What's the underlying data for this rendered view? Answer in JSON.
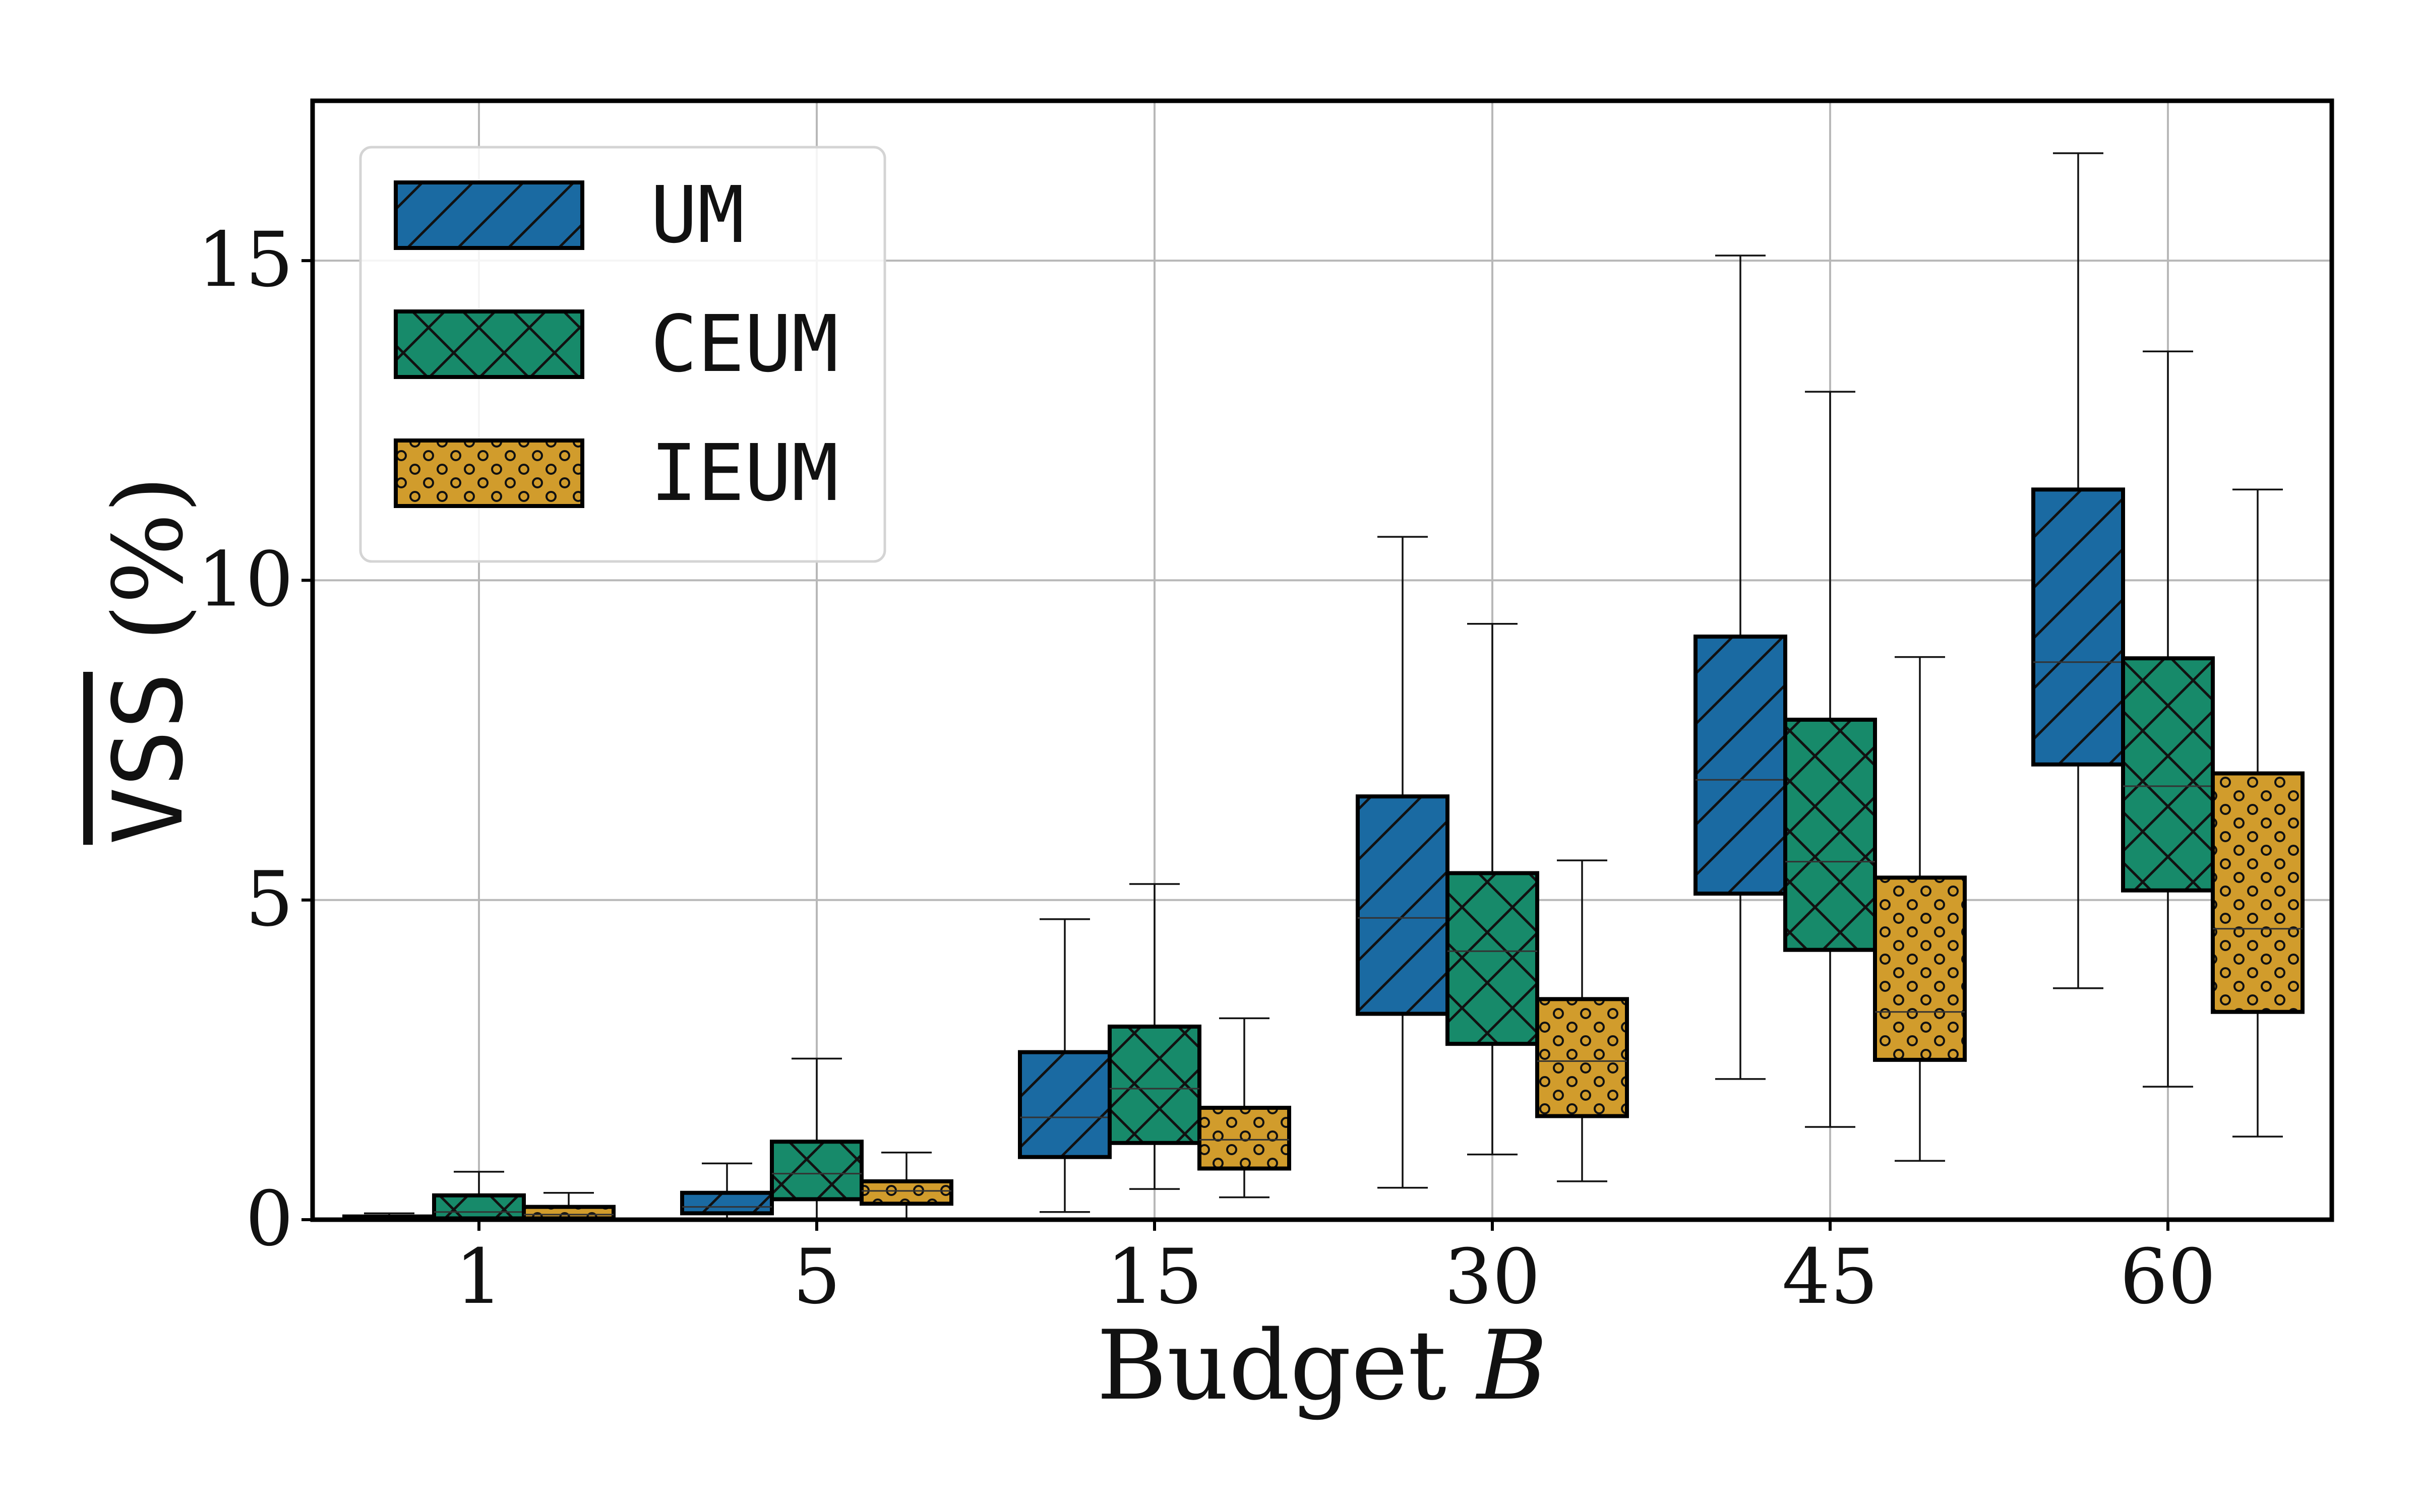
{
  "chart_data": {
    "type": "box",
    "xlabel_text": "Budget ",
    "xlabel_symbol": "B",
    "ylabel_text": "VSS",
    "ylabel_unit": "(%)",
    "categories": [
      "1",
      "5",
      "15",
      "30",
      "45",
      "60"
    ],
    "ylim": [
      0,
      17.5
    ],
    "yticks": [
      0,
      5,
      10,
      15
    ],
    "ytick_labels": [
      "0",
      "5",
      "10",
      "15"
    ],
    "grid": true,
    "legend_position": "top-left",
    "series": [
      {
        "name": "UM",
        "color": "#1a6aa2",
        "hatch": "diagonal",
        "boxes": [
          {
            "whisker_low": 0.0,
            "q1": 0.0,
            "median": 0.02,
            "q3": 0.05,
            "whisker_high": 0.1
          },
          {
            "whisker_low": 0.0,
            "q1": 0.1,
            "median": 0.2,
            "q3": 0.42,
            "whisker_high": 0.88
          },
          {
            "whisker_low": 0.12,
            "q1": 0.98,
            "median": 1.6,
            "q3": 2.62,
            "whisker_high": 4.7
          },
          {
            "whisker_low": 0.5,
            "q1": 3.22,
            "median": 4.72,
            "q3": 6.62,
            "whisker_high": 10.68
          },
          {
            "whisker_low": 2.2,
            "q1": 5.1,
            "median": 6.88,
            "q3": 9.12,
            "whisker_high": 15.08
          },
          {
            "whisker_low": 3.62,
            "q1": 7.12,
            "median": 8.72,
            "q3": 11.42,
            "whisker_high": 16.68
          }
        ]
      },
      {
        "name": "CEUM",
        "color": "#178a6a",
        "hatch": "cross",
        "boxes": [
          {
            "whisker_low": 0.0,
            "q1": 0.02,
            "median": 0.12,
            "q3": 0.38,
            "whisker_high": 0.75
          },
          {
            "whisker_low": 0.0,
            "q1": 0.32,
            "median": 0.72,
            "q3": 1.22,
            "whisker_high": 2.52
          },
          {
            "whisker_low": 0.48,
            "q1": 1.2,
            "median": 2.05,
            "q3": 3.02,
            "whisker_high": 5.25
          },
          {
            "whisker_low": 1.02,
            "q1": 2.75,
            "median": 4.2,
            "q3": 5.42,
            "whisker_high": 9.32
          },
          {
            "whisker_low": 1.45,
            "q1": 4.22,
            "median": 5.6,
            "q3": 7.82,
            "whisker_high": 12.95
          },
          {
            "whisker_low": 2.08,
            "q1": 5.15,
            "median": 6.78,
            "q3": 8.78,
            "whisker_high": 13.58
          }
        ]
      },
      {
        "name": "IEUM",
        "color": "#d19c2c",
        "hatch": "dots",
        "boxes": [
          {
            "whisker_low": 0.0,
            "q1": 0.02,
            "median": 0.08,
            "q3": 0.2,
            "whisker_high": 0.42
          },
          {
            "whisker_low": 0.0,
            "q1": 0.25,
            "median": 0.45,
            "q3": 0.6,
            "whisker_high": 1.05
          },
          {
            "whisker_low": 0.35,
            "q1": 0.8,
            "median": 1.25,
            "q3": 1.75,
            "whisker_high": 3.15
          },
          {
            "whisker_low": 0.6,
            "q1": 1.62,
            "median": 2.48,
            "q3": 3.45,
            "whisker_high": 5.62
          },
          {
            "whisker_low": 0.92,
            "q1": 2.5,
            "median": 3.25,
            "q3": 5.35,
            "whisker_high": 8.8
          },
          {
            "whisker_low": 1.3,
            "q1": 3.25,
            "median": 4.55,
            "q3": 6.98,
            "whisker_high": 11.42
          }
        ]
      }
    ]
  }
}
